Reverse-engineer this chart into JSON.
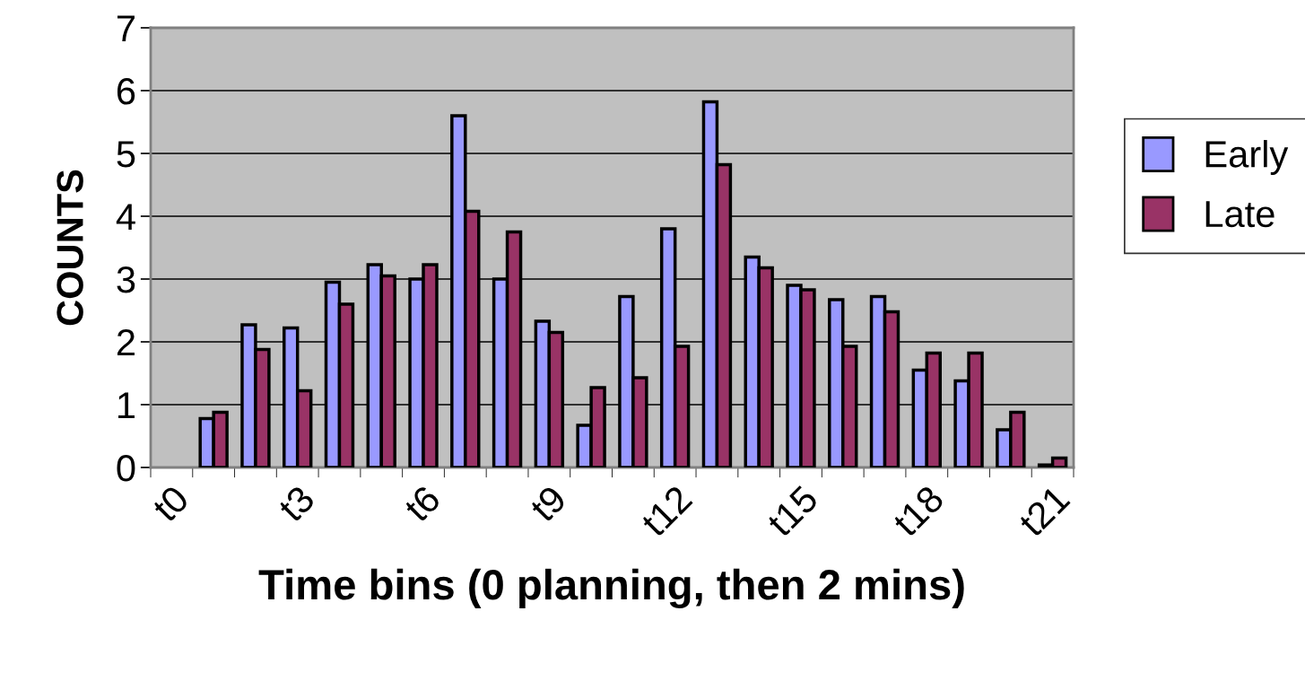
{
  "chart_data": {
    "type": "bar",
    "xlabel": "Time bins (0 planning, then 2 mins)",
    "ylabel": "COUNTS",
    "categories": [
      "t0",
      null,
      null,
      "t3",
      null,
      null,
      "t6",
      null,
      null,
      "t9",
      null,
      null,
      "t12",
      null,
      null,
      "t15",
      null,
      null,
      "t18",
      null,
      null,
      "t21"
    ],
    "series": [
      {
        "name": "Early",
        "color": "#9999ff",
        "values": [
          null,
          0.78,
          2.27,
          2.22,
          2.95,
          3.23,
          3.0,
          5.6,
          3.0,
          2.33,
          0.67,
          2.72,
          3.8,
          5.82,
          3.35,
          2.9,
          2.67,
          2.72,
          1.55,
          1.38,
          0.6,
          0.04
        ]
      },
      {
        "name": "Late",
        "color": "#993366",
        "values": [
          null,
          0.88,
          1.88,
          1.22,
          2.6,
          3.05,
          3.23,
          4.08,
          3.75,
          2.15,
          1.27,
          1.43,
          1.93,
          4.82,
          3.18,
          2.83,
          1.93,
          2.48,
          1.82,
          1.82,
          0.88,
          0.15
        ]
      }
    ],
    "ylim": [
      0,
      7
    ],
    "yticks": [
      0,
      1,
      2,
      3,
      4,
      5,
      6,
      7
    ],
    "grid": "y",
    "legend": "right"
  }
}
